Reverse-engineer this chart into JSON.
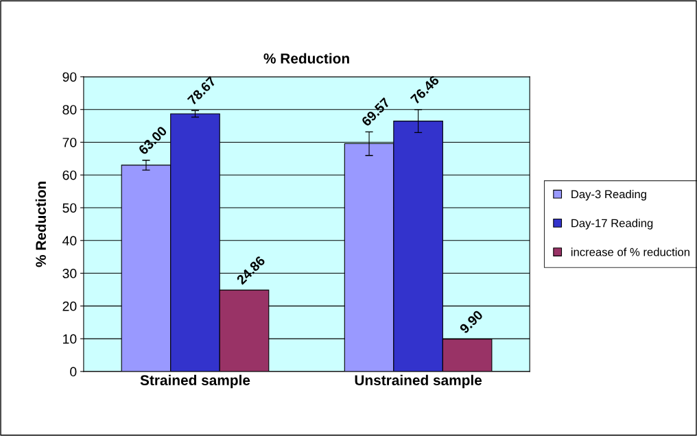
{
  "chart_data": {
    "type": "bar",
    "title": "% Reduction",
    "ylabel": "% Reduction",
    "categories": [
      "Strained sample",
      "Unstrained sample"
    ],
    "series": [
      {
        "name": "Day-3 Reading",
        "color": "#9999ff",
        "values": [
          63.0,
          69.57
        ],
        "errors": [
          1.5,
          3.6
        ],
        "value_labels": [
          "63.00",
          "69.57"
        ]
      },
      {
        "name": "Day-17 Reading",
        "color": "#3333cc",
        "values": [
          78.67,
          76.46
        ],
        "errors": [
          1.0,
          3.5
        ],
        "value_labels": [
          "78.67",
          "76.46"
        ]
      },
      {
        "name": "increase of % reduction",
        "color": "#993366",
        "values": [
          24.86,
          9.9
        ],
        "value_labels": [
          "24.86",
          "9.90"
        ]
      }
    ],
    "ylim": [
      0,
      90
    ],
    "yticks": [
      0,
      10,
      20,
      30,
      40,
      50,
      60,
      70,
      80,
      90
    ],
    "grid": "y",
    "legend": "right"
  }
}
